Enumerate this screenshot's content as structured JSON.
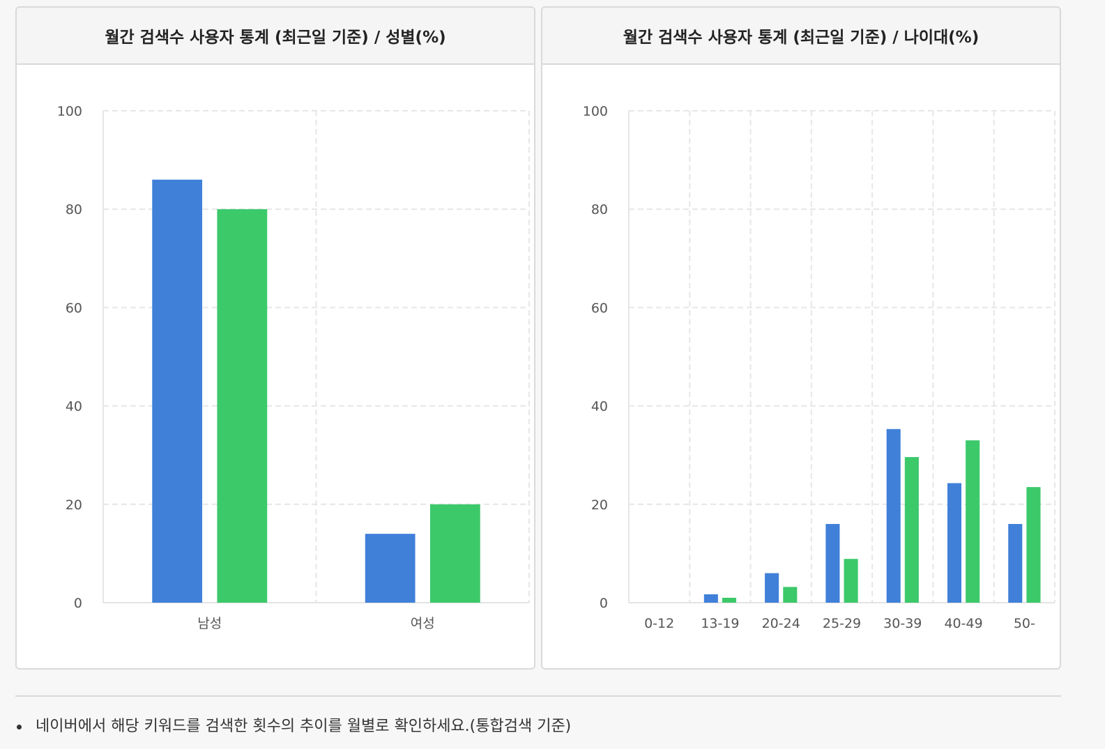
{
  "note": {
    "text": "네이버에서 해당 키워드를 검색한 횟수의 추이를 월별로 확인하세요.(통합검색 기준)"
  },
  "colors": {
    "blue": "#4080d9",
    "green": "#3cc96a",
    "grid": "#e6e6e6",
    "axis": "#e3e3e3"
  },
  "chart_data": [
    {
      "type": "bar",
      "title": "월간 검색수 사용자 통계 (최근일 기준) / 성별(%)",
      "categories": [
        "남성",
        "여성"
      ],
      "series": [
        {
          "values": [
            86,
            14
          ],
          "color": "#4080d9"
        },
        {
          "values": [
            80,
            20
          ],
          "color": "#3cc96a"
        }
      ],
      "ylim": [
        0,
        100
      ],
      "yticks": [
        0,
        20,
        40,
        60,
        80,
        100
      ],
      "grid": true
    },
    {
      "type": "bar",
      "title": "월간 검색수 사용자 통계 (최근일 기준) / 나이대(%)",
      "categories": [
        "0-12",
        "13-19",
        "20-24",
        "25-29",
        "30-39",
        "40-49",
        "50-"
      ],
      "series": [
        {
          "values": [
            0,
            1.7,
            6,
            16,
            35.3,
            24.3,
            16
          ],
          "color": "#4080d9"
        },
        {
          "values": [
            0,
            1,
            3.2,
            8.9,
            29.6,
            33,
            23.5
          ],
          "color": "#3cc96a"
        }
      ],
      "ylim": [
        0,
        100
      ],
      "yticks": [
        0,
        20,
        40,
        60,
        80,
        100
      ],
      "grid": true
    }
  ]
}
